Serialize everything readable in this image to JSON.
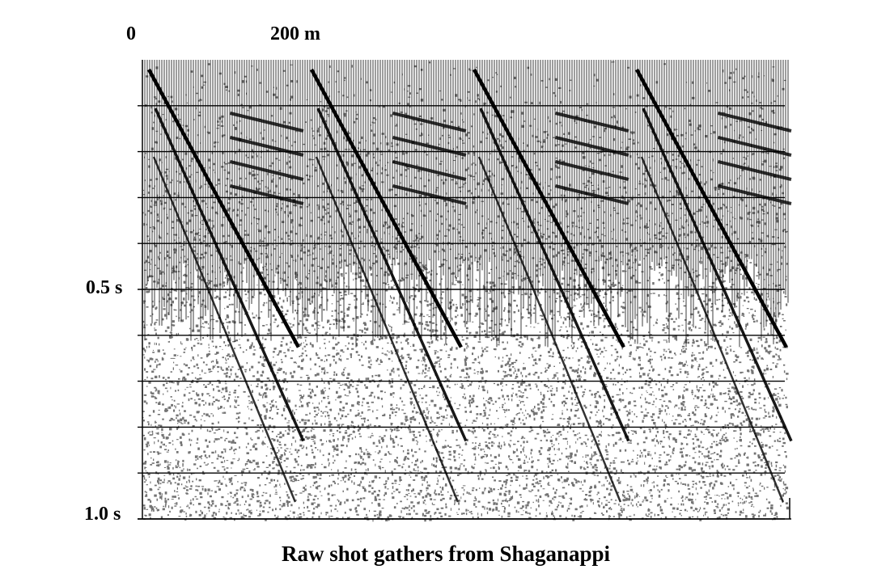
{
  "figure": {
    "caption": "Raw shot gathers from Shaganappi",
    "distance_labels": [
      "0",
      "200 m"
    ],
    "time_labels": [
      "0.5 s",
      "1.0 s"
    ],
    "gather_count": 4,
    "colors": {
      "ink": "#000000",
      "paper": "#ffffff"
    }
  }
}
